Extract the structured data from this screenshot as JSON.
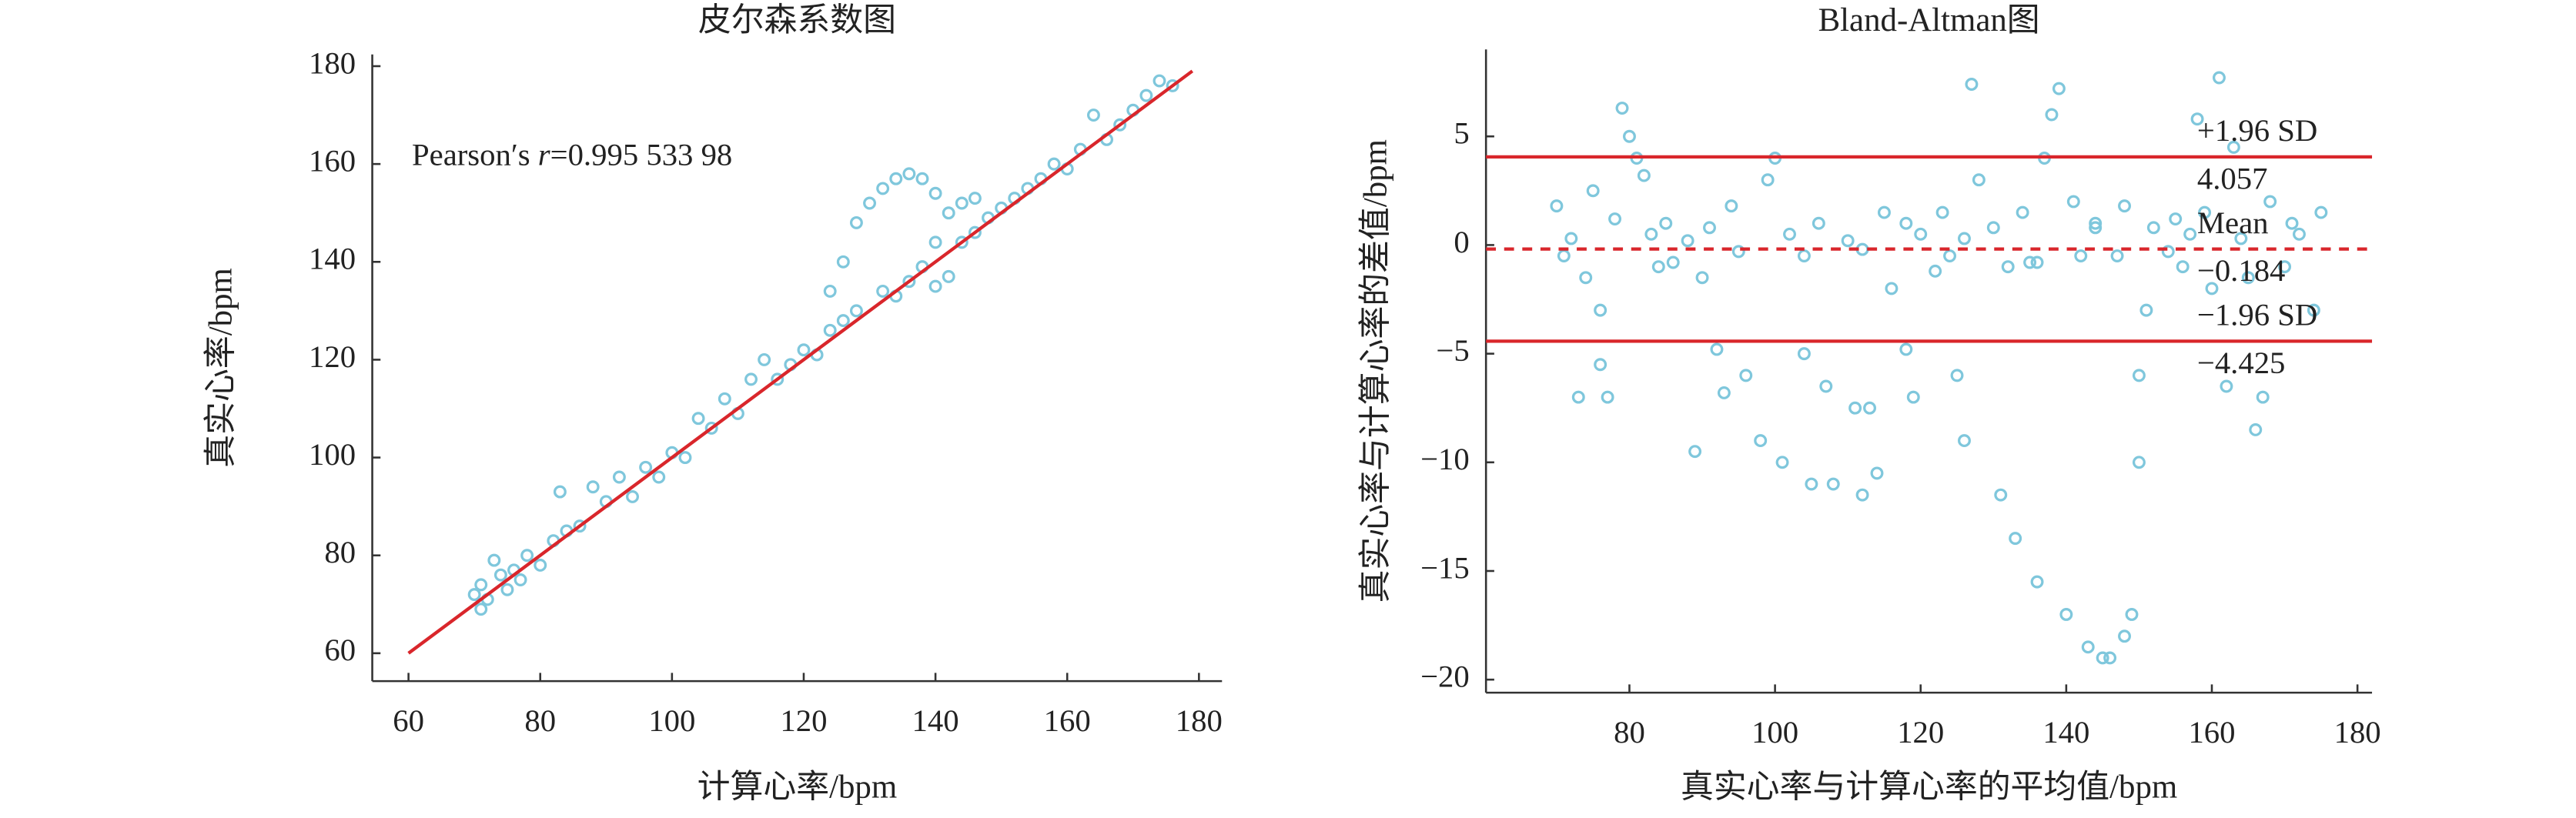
{
  "chart_data": [
    {
      "type": "scatter",
      "title": "皮尔森系数图",
      "xlabel": "计算心率/bpm",
      "ylabel": "真实心率/bpm",
      "annotation": [
        "Pearson′s ",
        "r",
        "=0.995 533 98"
      ],
      "color": "#7fc7dc",
      "line_color": "#d9262b",
      "xlim": [
        54.5,
        183.5
      ],
      "ylim": [
        54.3,
        182.4
      ],
      "xticks": [
        60,
        80,
        100,
        120,
        140,
        160,
        180
      ],
      "yticks": [
        60,
        80,
        100,
        120,
        140,
        160,
        180
      ],
      "x": [
        70,
        71,
        71,
        72,
        73,
        74,
        75,
        76,
        77,
        78,
        80,
        82,
        83,
        84,
        86,
        88,
        90,
        92,
        94,
        96,
        98,
        100,
        102,
        104,
        106,
        108,
        110,
        112,
        114,
        116,
        118,
        120,
        122,
        124,
        126,
        128,
        128,
        130,
        132,
        134,
        136,
        138,
        140,
        142,
        144,
        146,
        132,
        134,
        136,
        138,
        140,
        142,
        144,
        146,
        148,
        150,
        152,
        154,
        156,
        158,
        160,
        162,
        164,
        166,
        168,
        170,
        172,
        174,
        176,
        126,
        124,
        140
      ],
      "y": [
        72,
        69,
        74,
        71,
        79,
        76,
        73,
        77,
        75,
        80,
        78,
        83,
        93,
        85,
        86,
        94,
        91,
        96,
        92,
        98,
        96,
        101,
        100,
        108,
        106,
        112,
        109,
        116,
        120,
        116,
        119,
        122,
        121,
        126,
        128,
        130,
        148,
        152,
        155,
        157,
        158,
        157,
        154,
        150,
        152,
        153,
        134,
        133,
        136,
        139,
        135,
        137,
        144,
        146,
        149,
        151,
        153,
        155,
        157,
        160,
        159,
        163,
        170,
        165,
        168,
        171,
        174,
        177,
        176,
        140,
        134,
        144
      ],
      "fit_line": {
        "x": [
          60,
          179
        ],
        "y": [
          60,
          179
        ]
      }
    },
    {
      "type": "scatter",
      "title": "Bland-Altman图",
      "xlabel": "真实心率与计算心率的平均值/bpm",
      "ylabel": "真实心率与计算心率的差值/bpm",
      "color": "#7fc7dc",
      "line_color": "#d9262b",
      "xlim": [
        60.3,
        182
      ],
      "ylim": [
        -20.6,
        9
      ],
      "xticks": [
        80,
        100,
        120,
        140,
        160,
        180
      ],
      "yticks": [
        5,
        0,
        {
          "value": -5,
          "label": "−5"
        },
        {
          "value": -10,
          "label": "−10"
        },
        {
          "value": -15,
          "label": "−15"
        },
        {
          "value": -20,
          "label": "−20"
        }
      ],
      "x": [
        70,
        71,
        72,
        73,
        74,
        75,
        76,
        76,
        77,
        78,
        79,
        80,
        81,
        82,
        83,
        84,
        85,
        86,
        88,
        89,
        90,
        91,
        92,
        93,
        94,
        95,
        96,
        98,
        99,
        100,
        101,
        102,
        104,
        105,
        106,
        107,
        108,
        110,
        111,
        112,
        113,
        114,
        115,
        116,
        118,
        119,
        120,
        122,
        123,
        124,
        125,
        126,
        127,
        128,
        130,
        131,
        132,
        133,
        134,
        135,
        136,
        137,
        138,
        139,
        140,
        141,
        142,
        143,
        144,
        145,
        146,
        147,
        148,
        149,
        150,
        150,
        151,
        152,
        154,
        155,
        156,
        157,
        158,
        159,
        160,
        161,
        162,
        163,
        164,
        165,
        166,
        167,
        168,
        170,
        171,
        172,
        174,
        175,
        118,
        112,
        104,
        126,
        144,
        148,
        136
      ],
      "y": [
        1.8,
        -0.5,
        0.3,
        -7,
        -1.5,
        2.5,
        -5.5,
        -3,
        -7,
        1.2,
        6.3,
        5,
        4,
        3.2,
        0.5,
        -1,
        1,
        -0.8,
        0.2,
        -9.5,
        -1.5,
        0.8,
        -4.8,
        -6.8,
        1.8,
        -0.3,
        -6,
        -9,
        3,
        4,
        -10,
        0.5,
        -5,
        -11,
        1,
        -6.5,
        -11,
        0.2,
        -7.5,
        -11.5,
        -7.5,
        -10.5,
        1.5,
        -2,
        -4.8,
        -7,
        0.5,
        -1.2,
        1.5,
        -0.5,
        -6,
        -9,
        7.4,
        3,
        0.8,
        -11.5,
        -1,
        -13.5,
        1.5,
        -0.8,
        -15.5,
        4,
        6,
        7.2,
        -17,
        2,
        -0.5,
        -18.5,
        1,
        -19,
        -19,
        -0.5,
        -18,
        -17,
        -10,
        -6,
        -3,
        0.8,
        -0.3,
        1.2,
        -1,
        0.5,
        5.8,
        1.5,
        -2,
        7.7,
        -6.5,
        4.5,
        0.3,
        -1.5,
        -8.5,
        -7,
        2,
        -1,
        1,
        0.5,
        -3,
        1.5,
        1,
        -0.2,
        -0.5,
        0.3,
        0.8,
        1.8,
        -0.8
      ],
      "hlines": [
        {
          "name": "+1.96 SD",
          "value": 4.057,
          "value_label": "4.057",
          "style": "solid"
        },
        {
          "name": "Mean",
          "value": -0.184,
          "value_label": "−0.184",
          "style": "dashed"
        },
        {
          "name": "−1.96 SD",
          "value": -4.425,
          "value_label": "−4.425",
          "style": "solid"
        }
      ]
    }
  ]
}
